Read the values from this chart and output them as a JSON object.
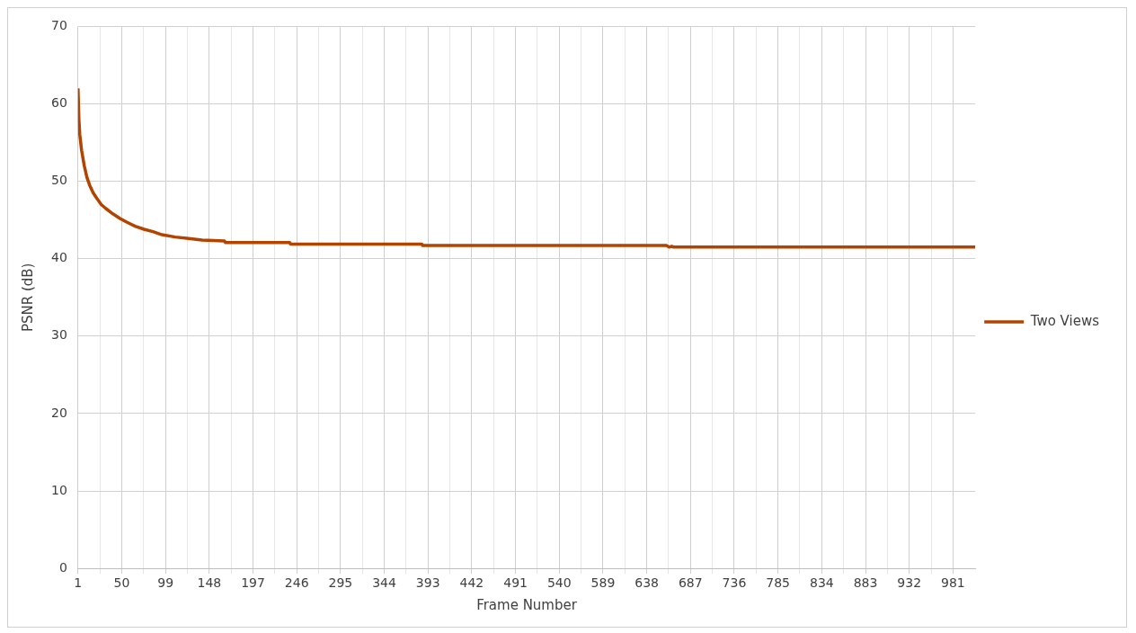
{
  "chart_data": {
    "type": "line",
    "xlabel": "Frame Number",
    "ylabel": "PSNR (dB)",
    "xlim": [
      1,
      1006
    ],
    "xticks": [
      1,
      {
        "value": 25.5,
        "label": null
      },
      50,
      {
        "value": 74.5,
        "label": null
      },
      99,
      {
        "value": 123.5,
        "label": null
      },
      148,
      {
        "value": 172.5,
        "label": null
      },
      197,
      {
        "value": 221.5,
        "label": null
      },
      246,
      {
        "value": 270.5,
        "label": null
      },
      295,
      {
        "value": 319.5,
        "label": null
      },
      344,
      {
        "value": 368.5,
        "label": null
      },
      393,
      {
        "value": 417.5,
        "label": null
      },
      442,
      {
        "value": 466.5,
        "label": null
      },
      491,
      {
        "value": 515.5,
        "label": null
      },
      540,
      {
        "value": 564.5,
        "label": null
      },
      589,
      {
        "value": 613.5,
        "label": null
      },
      638,
      {
        "value": 662.5,
        "label": null
      },
      687,
      {
        "value": 711.5,
        "label": null
      },
      736,
      {
        "value": 760.5,
        "label": null
      },
      785,
      {
        "value": 809.5,
        "label": null
      },
      834,
      {
        "value": 858.5,
        "label": null
      },
      883,
      {
        "value": 907.5,
        "label": null
      },
      932,
      {
        "value": 956.5,
        "label": null
      },
      981
    ],
    "ylim": [
      0,
      70
    ],
    "yticks": [
      0,
      10,
      20,
      30,
      40,
      50,
      60,
      70
    ],
    "grid": true,
    "legend": "right",
    "marker": "none",
    "line_style": "solid",
    "series": [
      {
        "name": "Two Views",
        "color": "#b34400",
        "x": [
          1,
          2,
          3,
          5,
          8,
          11,
          14,
          18,
          22,
          27,
          32,
          40,
          48,
          56,
          65,
          75,
          85,
          95,
          110,
          125,
          140,
          165,
          166,
          238,
          239,
          386,
          387,
          660,
          663,
          666,
          668,
          1006
        ],
        "values": [
          62,
          58,
          56,
          54,
          52,
          50.5,
          49.5,
          48.5,
          47.8,
          47,
          46.5,
          45.8,
          45.2,
          44.7,
          44.2,
          43.8,
          43.5,
          43.1,
          42.8,
          42.6,
          42.4,
          42.3,
          42.1,
          42.1,
          41.9,
          41.9,
          41.7,
          41.7,
          41.5,
          41.6,
          41.5,
          41.5
        ]
      }
    ]
  }
}
